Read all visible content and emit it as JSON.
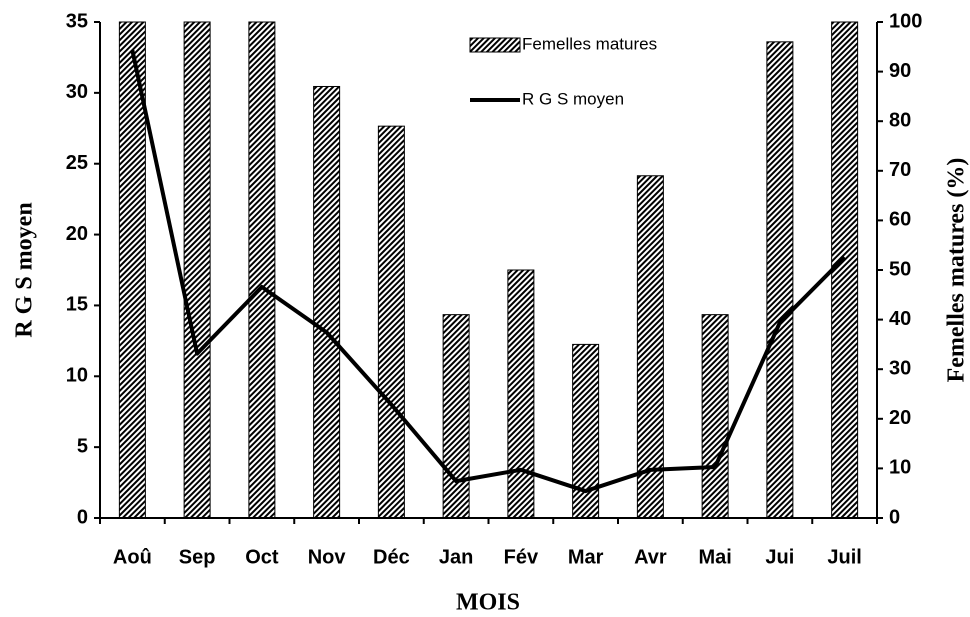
{
  "chart_data": {
    "type": "bar_line",
    "x_label": "MOIS",
    "y_label": "R G S moyen",
    "y2_label": "Femelles matures (%)",
    "categories": [
      "Aoû",
      "Sep",
      "Oct",
      "Nov",
      "Déc",
      "Jan",
      "Fév",
      "Mar",
      "Avr",
      "Mai",
      "Jui",
      "Juil"
    ],
    "series": [
      {
        "name": "Femelles matures",
        "type": "bar",
        "axis": "y2",
        "color": "#000000",
        "values": [
          100,
          100,
          100,
          87,
          79,
          41,
          50,
          35,
          69,
          41,
          96,
          100
        ]
      },
      {
        "name": "R G S moyen",
        "type": "line",
        "axis": "y",
        "color": "#000000",
        "values": [
          33,
          11.6,
          16.3,
          13.1,
          8.0,
          2.6,
          3.4,
          1.9,
          3.4,
          3.6,
          13.8,
          18.4
        ]
      }
    ],
    "ylim": [
      0,
      35
    ],
    "yticks": [
      0,
      5,
      10,
      15,
      20,
      25,
      30,
      35
    ],
    "y2lim": [
      0,
      100
    ],
    "y2ticks": [
      0,
      10,
      20,
      30,
      40,
      50,
      60,
      70,
      80,
      90,
      100
    ],
    "legend": "top"
  }
}
